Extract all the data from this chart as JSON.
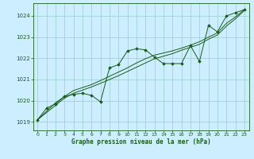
{
  "title": "Graphe pression niveau de la mer (hPa)",
  "bg_color": "#cceeff",
  "grid_color": "#99cccc",
  "line_color": "#1a5c1a",
  "marker_color": "#1a5c1a",
  "xlim": [
    -0.5,
    23.5
  ],
  "ylim": [
    1018.6,
    1024.6
  ],
  "xticks": [
    0,
    1,
    2,
    3,
    4,
    5,
    6,
    7,
    8,
    9,
    10,
    11,
    12,
    13,
    14,
    15,
    16,
    17,
    18,
    19,
    20,
    21,
    22,
    23
  ],
  "yticks": [
    1019,
    1020,
    1021,
    1022,
    1023,
    1024
  ],
  "x": [
    0,
    1,
    2,
    3,
    4,
    5,
    6,
    7,
    8,
    9,
    10,
    11,
    12,
    13,
    14,
    15,
    16,
    17,
    18,
    19,
    20,
    21,
    22,
    23
  ],
  "y_main": [
    1019.1,
    1019.65,
    1019.85,
    1020.2,
    1020.3,
    1020.35,
    1020.25,
    1019.95,
    1021.55,
    1021.7,
    1022.35,
    1022.45,
    1022.4,
    1022.05,
    1021.75,
    1021.75,
    1021.75,
    1022.6,
    1021.85,
    1023.55,
    1023.25,
    1024.0,
    1024.15,
    1024.3
  ],
  "y_trend1": [
    1019.1,
    1019.44,
    1019.78,
    1020.12,
    1020.35,
    1020.5,
    1020.65,
    1020.82,
    1021.0,
    1021.18,
    1021.38,
    1021.58,
    1021.78,
    1021.98,
    1022.1,
    1022.22,
    1022.38,
    1022.52,
    1022.66,
    1022.9,
    1023.1,
    1023.52,
    1023.86,
    1024.26
  ],
  "y_trend2": [
    1019.1,
    1019.5,
    1019.9,
    1020.2,
    1020.48,
    1020.62,
    1020.76,
    1020.95,
    1021.15,
    1021.35,
    1021.55,
    1021.78,
    1021.98,
    1022.15,
    1022.25,
    1022.35,
    1022.48,
    1022.62,
    1022.78,
    1023.0,
    1023.2,
    1023.65,
    1023.95,
    1024.3
  ]
}
